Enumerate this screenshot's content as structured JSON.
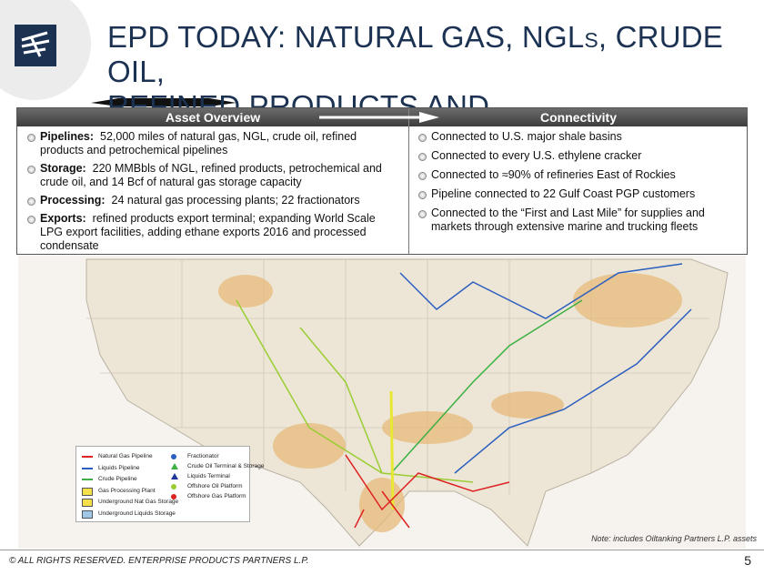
{
  "header": {
    "title_lines": [
      "EPD TODAY:  NATURAL GAS, NGLs, CRUDE OIL,",
      "REFINED PRODUCTS AND PETROCHEMICALS"
    ]
  },
  "table": {
    "headers": [
      "Asset Overview",
      "Connectivity"
    ],
    "left": [
      {
        "label": "Pipelines:",
        "text": "52,000 miles of natural gas, NGL, crude oil, refined products and petrochemical pipelines"
      },
      {
        "label": "Storage:",
        "text": "220 MMBbls of NGL, refined products, petrochemical and crude oil, and 14 Bcf of natural gas storage capacity"
      },
      {
        "label": "Processing:",
        "text": "24 natural gas processing plants; 22 fractionators"
      },
      {
        "label": "Exports:",
        "text": "refined products export terminal; expanding World Scale LPG export facilities, adding ethane exports 2016 and processed condensate"
      }
    ],
    "right": [
      "Connected to U.S. major shale basins",
      "Connected to every U.S. ethylene cracker",
      "Connected to ≈90% of refineries East of Rockies",
      "Pipeline connected to 22 Gulf Coast PGP customers",
      "Connected to the “First and Last Mile” for supplies and markets through extensive marine and trucking fleets"
    ]
  },
  "legend": [
    "Natural Gas Pipeline",
    "Liquids Pipeline",
    "Crude Pipeline",
    "Gas Processing Plant",
    "Underground Nat Gas Storage",
    "Underground Liquids Storage",
    "Fractionator",
    "Crude Oil Terminal & Storage",
    "Liquids Terminal",
    "Offshore Oil Platform",
    "Offshore Gas Platform"
  ],
  "note": "Note:  includes Oiltanking Partners L.P. assets",
  "footer": {
    "copyright": "© ALL RIGHTS RESERVED. ENTERPRISE PRODUCTS PARTNERS L.P.",
    "page": "5"
  }
}
